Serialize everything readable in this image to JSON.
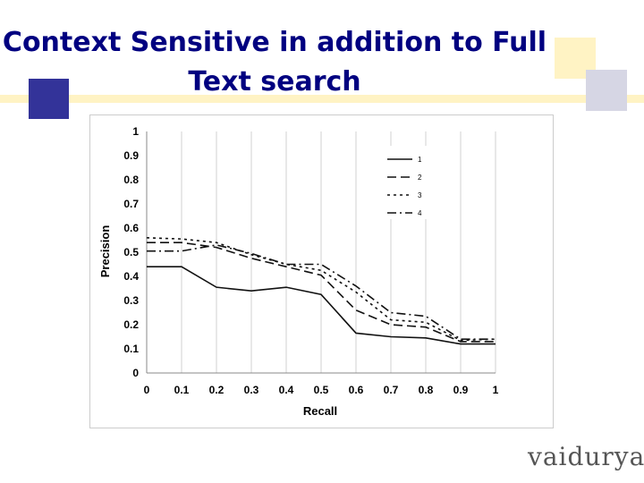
{
  "slide": {
    "title": "Context Sensitive in addition to Full Text search",
    "logo_text": "vaidurya",
    "colors": {
      "title": "#000080",
      "accent_blue": "#333399",
      "accent_cream": "#fff3c4",
      "accent_gray": "#d6d6e4"
    }
  },
  "chart_data": {
    "type": "line",
    "title": "",
    "xlabel": "Recall",
    "ylabel": "Precision",
    "x": [
      0,
      0.1,
      0.2,
      0.3,
      0.4,
      0.5,
      0.6,
      0.7,
      0.8,
      0.9,
      1
    ],
    "x_tick_labels": [
      "0",
      "0.1",
      "0.2",
      "0.3",
      "0.4",
      "0.5",
      "0.6",
      "0.7",
      "0.8",
      "0.9",
      "1"
    ],
    "y_tick_labels": [
      "0",
      "0.1",
      "0.2",
      "0.3",
      "0.4",
      "0.5",
      "0.6",
      "0.7",
      "0.8",
      "0.9",
      "1"
    ],
    "xlim": [
      0,
      1
    ],
    "ylim": [
      0,
      1
    ],
    "grid": "vertical",
    "legend": "top-right",
    "series": [
      {
        "name": "1",
        "dash": "solid",
        "values": [
          0.44,
          0.44,
          0.355,
          0.34,
          0.355,
          0.325,
          0.165,
          0.15,
          0.145,
          0.12,
          0.12
        ]
      },
      {
        "name": "2",
        "dash": "dashed",
        "values": [
          0.54,
          0.54,
          0.52,
          0.475,
          0.44,
          0.405,
          0.26,
          0.2,
          0.19,
          0.13,
          0.13
        ]
      },
      {
        "name": "3",
        "dash": "dotted",
        "values": [
          0.56,
          0.555,
          0.54,
          0.49,
          0.45,
          0.425,
          0.335,
          0.22,
          0.21,
          0.135,
          0.14
        ]
      },
      {
        "name": "4",
        "dash": "dash-dot",
        "values": [
          0.505,
          0.505,
          0.53,
          0.495,
          0.45,
          0.45,
          0.36,
          0.25,
          0.235,
          0.14,
          0.14
        ]
      }
    ]
  }
}
